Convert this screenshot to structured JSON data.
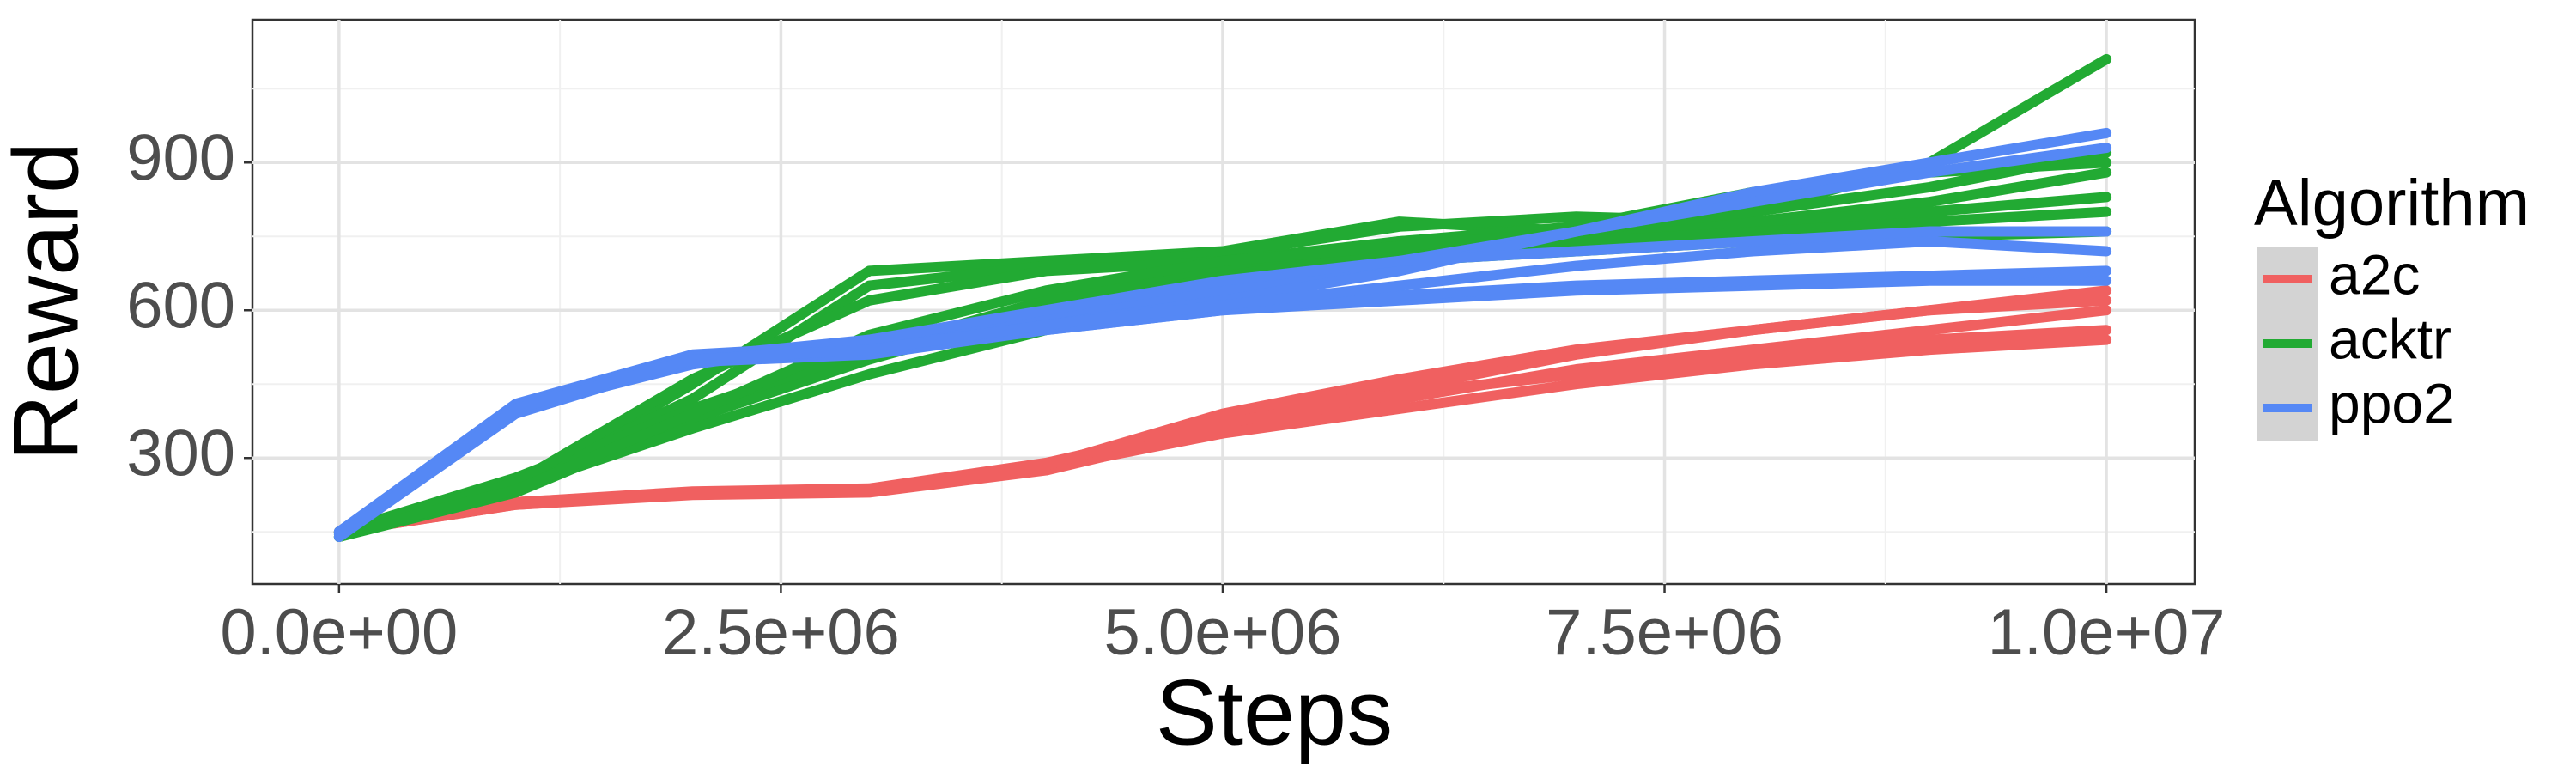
{
  "chart_data": {
    "type": "line",
    "x_label": "Steps",
    "y_label": "Reward",
    "legend_title": "Algorithm",
    "legend_position": "right",
    "grid": true,
    "x": [
      0,
      1000000,
      2000000,
      3000000,
      4000000,
      5000000,
      6000000,
      7000000,
      8000000,
      9000000,
      10000000
    ],
    "xlim": [
      -490000,
      10500000
    ],
    "xticks": [
      {
        "value": 0,
        "label": "0.0e+00"
      },
      {
        "value": 2500000,
        "label": "2.5e+06"
      },
      {
        "value": 5000000,
        "label": "5.0e+06"
      },
      {
        "value": 7500000,
        "label": "7.5e+06"
      },
      {
        "value": 10000000,
        "label": "1.0e+07"
      }
    ],
    "x_minor": [
      1250000,
      3750000,
      6250000,
      8750000
    ],
    "ylim": [
      44,
      1190
    ],
    "yticks": [
      300,
      600,
      900
    ],
    "y_minor": [
      150,
      450,
      750,
      1050
    ],
    "series": [
      {
        "name": "a2c",
        "color": "#f06060",
        "runs": [
          [
            150,
            205,
            225,
            230,
            275,
            360,
            420,
            480,
            520,
            560,
            600
          ],
          [
            150,
            210,
            230,
            235,
            285,
            380,
            440,
            510,
            560,
            600,
            640
          ],
          [
            150,
            205,
            228,
            232,
            280,
            350,
            400,
            450,
            490,
            520,
            540
          ],
          [
            150,
            210,
            232,
            238,
            290,
            370,
            430,
            470,
            510,
            540,
            560
          ],
          [
            150,
            208,
            230,
            236,
            285,
            390,
            460,
            520,
            560,
            600,
            620
          ]
        ]
      },
      {
        "name": "acktr",
        "color": "#22aa33",
        "runs": [
          [
            140,
            240,
            450,
            680,
            700,
            720,
            780,
            760,
            800,
            900,
            1110
          ],
          [
            150,
            250,
            420,
            650,
            690,
            715,
            770,
            790,
            780,
            820,
            880
          ],
          [
            140,
            230,
            380,
            500,
            600,
            680,
            720,
            740,
            760,
            780,
            800
          ],
          [
            150,
            260,
            400,
            520,
            620,
            690,
            740,
            760,
            780,
            800,
            830
          ],
          [
            140,
            240,
            360,
            470,
            560,
            640,
            700,
            720,
            740,
            750,
            760
          ],
          [
            150,
            250,
            460,
            620,
            680,
            700,
            740,
            770,
            840,
            880,
            900
          ],
          [
            145,
            235,
            390,
            550,
            640,
            700,
            730,
            760,
            800,
            850,
            920
          ]
        ]
      },
      {
        "name": "ppo2",
        "color": "#5588f5",
        "runs": [
          [
            150,
            400,
            490,
            540,
            590,
            640,
            700,
            760,
            840,
            900,
            960
          ],
          [
            140,
            390,
            500,
            520,
            570,
            620,
            680,
            760,
            820,
            880,
            930
          ],
          [
            150,
            410,
            510,
            530,
            560,
            600,
            620,
            640,
            650,
            660,
            660
          ],
          [
            145,
            395,
            495,
            510,
            560,
            600,
            630,
            650,
            660,
            670,
            680
          ],
          [
            150,
            405,
            505,
            540,
            600,
            660,
            700,
            720,
            740,
            760,
            760
          ],
          [
            140,
            400,
            500,
            520,
            570,
            610,
            650,
            690,
            720,
            740,
            720
          ]
        ]
      }
    ]
  }
}
